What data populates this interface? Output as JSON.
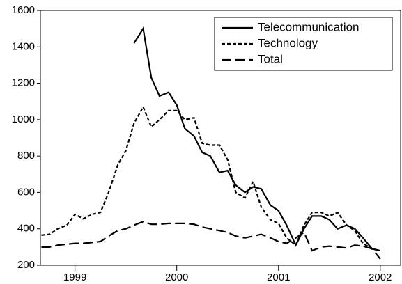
{
  "chart_data": {
    "type": "line",
    "x": [
      1998.67,
      1998.75,
      1998.83,
      1998.92,
      1999.0,
      1999.08,
      1999.17,
      1999.25,
      1999.33,
      1999.42,
      1999.5,
      1999.58,
      1999.67,
      1999.75,
      1999.83,
      1999.92,
      2000.0,
      2000.08,
      2000.17,
      2000.25,
      2000.33,
      2000.42,
      2000.5,
      2000.58,
      2000.67,
      2000.75,
      2000.83,
      2000.92,
      2001.0,
      2001.08,
      2001.17,
      2001.25,
      2001.33,
      2001.42,
      2001.5,
      2001.58,
      2001.67,
      2001.75,
      2001.83,
      2001.92,
      2002.0
    ],
    "series": [
      {
        "name": "Telecommunication",
        "color": "#000000",
        "dash": "solid",
        "values": [
          null,
          null,
          null,
          null,
          null,
          null,
          null,
          null,
          null,
          null,
          null,
          1420,
          1500,
          1230,
          1130,
          1150,
          1080,
          950,
          910,
          820,
          800,
          710,
          720,
          640,
          600,
          630,
          620,
          530,
          500,
          420,
          310,
          400,
          470,
          470,
          450,
          400,
          420,
          400,
          350,
          290,
          280
        ]
      },
      {
        "name": "Technology",
        "color": "#000000",
        "dash": "short",
        "values": [
          365,
          370,
          400,
          420,
          480,
          455,
          480,
          490,
          600,
          750,
          830,
          980,
          1070,
          960,
          1000,
          1050,
          1050,
          1000,
          1010,
          870,
          860,
          860,
          780,
          600,
          570,
          660,
          520,
          450,
          430,
          350,
          310,
          420,
          490,
          490,
          470,
          490,
          420,
          390,
          320,
          290,
          280
        ]
      },
      {
        "name": "Total",
        "color": "#000000",
        "dash": "long",
        "values": [
          300,
          300,
          310,
          315,
          320,
          320,
          325,
          330,
          360,
          390,
          400,
          420,
          440,
          425,
          425,
          430,
          430,
          430,
          425,
          410,
          400,
          390,
          380,
          360,
          350,
          360,
          370,
          350,
          330,
          320,
          350,
          380,
          280,
          300,
          305,
          300,
          295,
          310,
          305,
          290,
          235
        ]
      }
    ],
    "xlim": [
      1998.66,
      2002.2
    ],
    "xticks": [
      1999,
      2000,
      2001,
      2002
    ],
    "ylim": [
      200,
      1600
    ],
    "yticks": [
      200,
      400,
      600,
      800,
      1000,
      1200,
      1400,
      1600
    ],
    "legend": "upper right"
  }
}
